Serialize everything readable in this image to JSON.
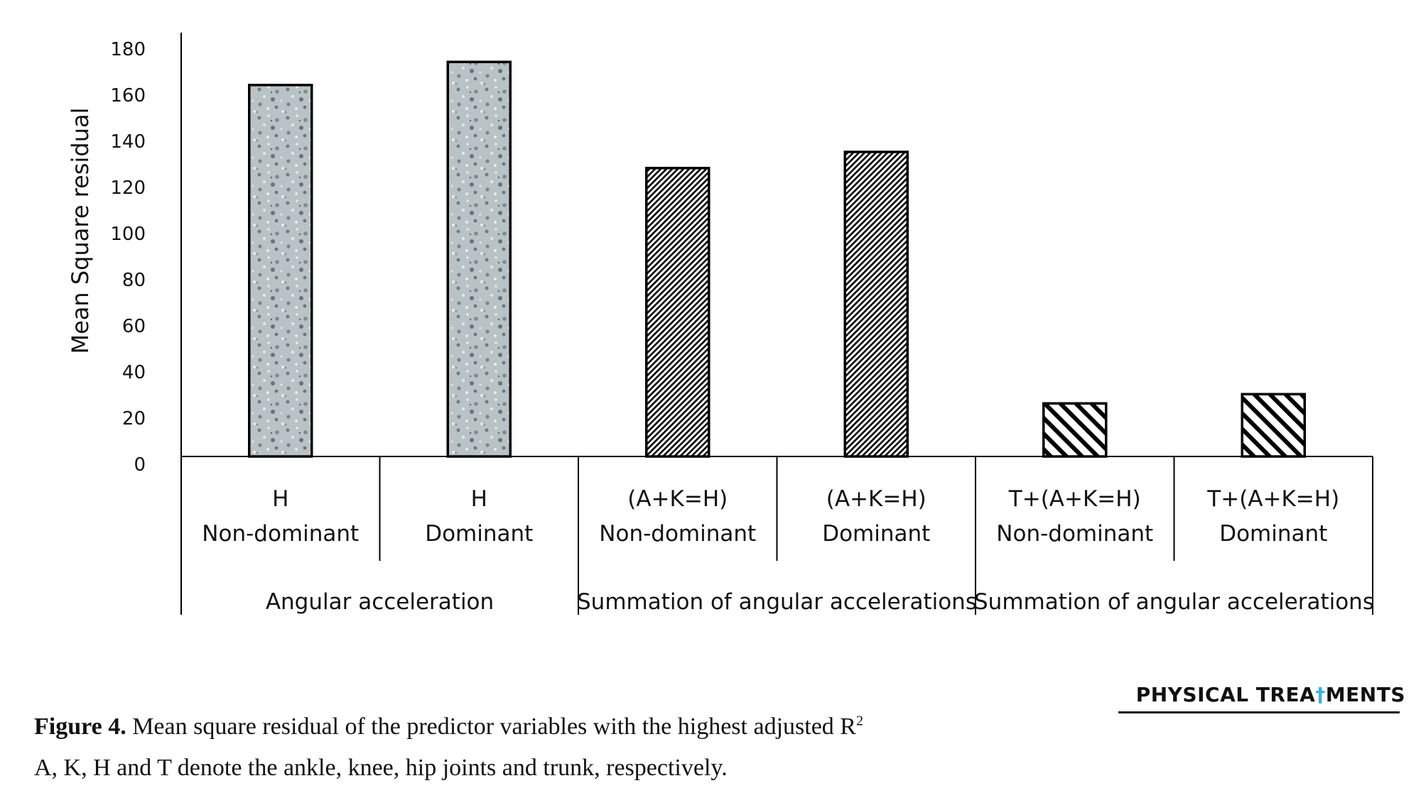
{
  "chart_data": {
    "type": "bar",
    "ylabel": "Mean Square residual",
    "xlabel": "",
    "title": "",
    "ylim": [
      0,
      180
    ],
    "yticks": [
      "0",
      "20",
      "40",
      "60",
      "80",
      "100",
      "120",
      "140",
      "160",
      "180"
    ],
    "grid": false,
    "categories": [
      {
        "line1": "H",
        "line2": "Non-dominant"
      },
      {
        "line1": "H",
        "line2": "Dominant"
      },
      {
        "line1": "(A+K=H)",
        "line2": "Non-dominant"
      },
      {
        "line1": "(A+K=H)",
        "line2": "Dominant"
      },
      {
        "line1": "T+(A+K=H)",
        "line2": "Non-dominant"
      },
      {
        "line1": "T+(A+K=H)",
        "line2": "Dominant"
      }
    ],
    "groups": [
      {
        "label": "Angular acceleration",
        "span": 2
      },
      {
        "label": "Summation of angular accelerations",
        "span": 2
      },
      {
        "label": "Summation of angular accelerations",
        "span": 2
      }
    ],
    "values": [
      161,
      171,
      125,
      132,
      23,
      27
    ],
    "patterns": [
      "speckle",
      "speckle",
      "fine-diagonal",
      "fine-diagonal",
      "wide-diagonal",
      "wide-diagonal"
    ],
    "colors": {
      "speckle_base": "#b9c2c4",
      "speckle_dark": "#6f7c80",
      "stroke": "#000000"
    }
  },
  "logo": {
    "text_left": "PHYSICAL TREA",
    "text_right": "MENTS",
    "accent": "#33b5e5"
  },
  "caption": {
    "label": "Figure 4.",
    "line1": " Mean square residual of the predictor variables with the highest adjusted R",
    "sup": "2",
    "line2": "A, K, H and T denote the ankle, knee, hip joints and trunk, respectively."
  }
}
